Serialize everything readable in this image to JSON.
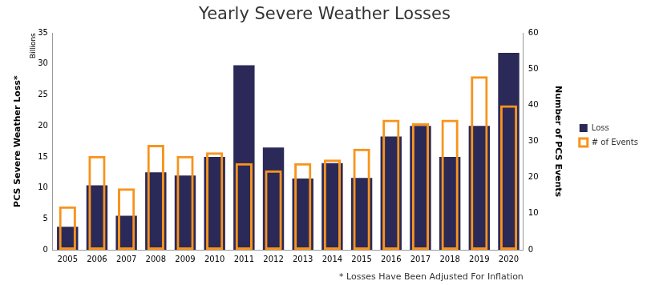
{
  "chart_data": {
    "type": "bar",
    "title": "Yearly Severe Weather Losses",
    "categories": [
      "2005",
      "2006",
      "2007",
      "2008",
      "2009",
      "2010",
      "2011",
      "2012",
      "2013",
      "2014",
      "2015",
      "2016",
      "2017",
      "2018",
      "2019",
      "2020"
    ],
    "series": [
      {
        "name": "Loss",
        "color": "#2b2958",
        "type": "bar",
        "marker": "filled",
        "values": [
          3.7,
          10.4,
          5.5,
          12.5,
          12,
          15,
          29.8,
          16.5,
          11.5,
          14,
          11.6,
          18.3,
          20,
          15,
          20,
          31.8
        ]
      },
      {
        "name": "# of Events",
        "color": "#f7941d",
        "type": "bar",
        "marker": "outline",
        "axis": "y2",
        "values": [
          12,
          26,
          17,
          29,
          26,
          27,
          24,
          22,
          24,
          25,
          28,
          36,
          35,
          36,
          48,
          40
        ]
      }
    ],
    "ylabel": "PCS Severe Weather Loss*",
    "y2label": "Number of PCS Events",
    "ylim": [
      0,
      35
    ],
    "yticks": [
      0,
      5,
      10,
      15,
      20,
      25,
      30,
      35
    ],
    "y2lim": [
      0,
      60
    ],
    "y2ticks": [
      0,
      10,
      20,
      30,
      40,
      50,
      60
    ],
    "grid": false,
    "legend": "right",
    "annotations": [
      "Billions",
      "* Losses Have Been Adjusted For Inflation"
    ]
  }
}
